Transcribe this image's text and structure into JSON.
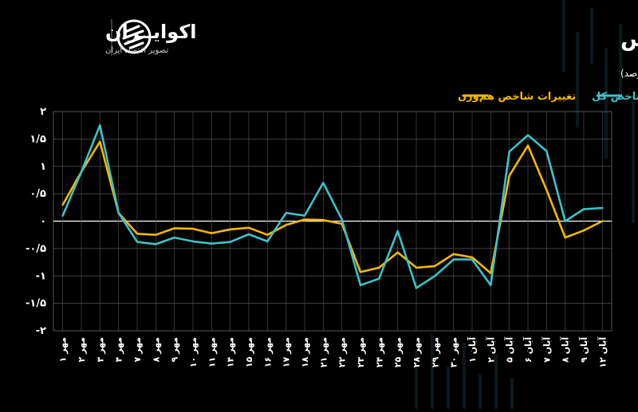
{
  "header": {
    "title": "روند تغییرات روزانه شاخص بورس",
    "unit": "(واحد: درصد)"
  },
  "brand": {
    "name": "اکوایــران",
    "tagline": "تصویر اقتصاد ایران",
    "logo_icon": "ecoiran-logo-icon"
  },
  "colors": {
    "background": "#000000",
    "total_index": "#3fc1c9",
    "equal_weight_index": "#f5b800",
    "grid": "#555555",
    "zero_line": "#ffffff"
  },
  "chart_data": {
    "type": "line",
    "title": "روند تغییرات روزانه شاخص بورس",
    "ylabel": "(واحد: درصد)",
    "xlabel": "",
    "ylim": [
      -2,
      2
    ],
    "yticks": [
      "۲",
      "۱/۵",
      "۱",
      "۰/۵",
      "۰",
      "-۰/۵",
      "-۱",
      "-۱/۵",
      "-۲"
    ],
    "grid": true,
    "legend_position": "top-right",
    "categories": [
      "۱ مهر",
      "۲ مهر",
      "۳ مهر",
      "۴ مهر",
      "۷ مهر",
      "۸ مهر",
      "۹ مهر",
      "۱۰ مهر",
      "۱۱ مهر",
      "۱۴ مهر",
      "۱۵ مهر",
      "۱۶ مهر",
      "۱۷ مهر",
      "۱۸ مهر",
      "۲۱ مهر",
      "۲۲ مهر",
      "۲۳ مهر",
      "۲۴ مهر",
      "۲۵ مهر",
      "۲۸ مهر",
      "۲۹ مهر",
      "۳۰ مهر",
      "۱ آبان",
      "۲ آبان",
      "۵ آبان",
      "۶ آبان",
      "۷ آبان",
      "۸ آبان",
      "۹ آبان",
      "۱۲ آبان"
    ],
    "series": [
      {
        "name": "تغییرات شاخص کل",
        "color": "#3fc1c9",
        "values": [
          0.1,
          0.9,
          1.75,
          0.15,
          -0.38,
          -0.42,
          -0.3,
          -0.37,
          -0.41,
          -0.38,
          -0.24,
          -0.37,
          0.15,
          0.1,
          0.7,
          0.03,
          -1.17,
          -1.05,
          -0.18,
          -1.22,
          -1.0,
          -0.7,
          -0.7,
          -1.17,
          1.27,
          1.57,
          1.28,
          0.0,
          0.22,
          0.24
        ]
      },
      {
        "name": "تغییرات شاخص هم‌وزن",
        "color": "#f5b800",
        "values": [
          0.3,
          0.9,
          1.45,
          0.15,
          -0.23,
          -0.25,
          -0.13,
          -0.14,
          -0.22,
          -0.15,
          -0.12,
          -0.25,
          -0.07,
          0.03,
          0.02,
          -0.05,
          -0.93,
          -0.85,
          -0.57,
          -0.85,
          -0.82,
          -0.6,
          -0.66,
          -0.95,
          0.83,
          1.38,
          0.57,
          -0.3,
          -0.17,
          0.0
        ]
      }
    ]
  }
}
